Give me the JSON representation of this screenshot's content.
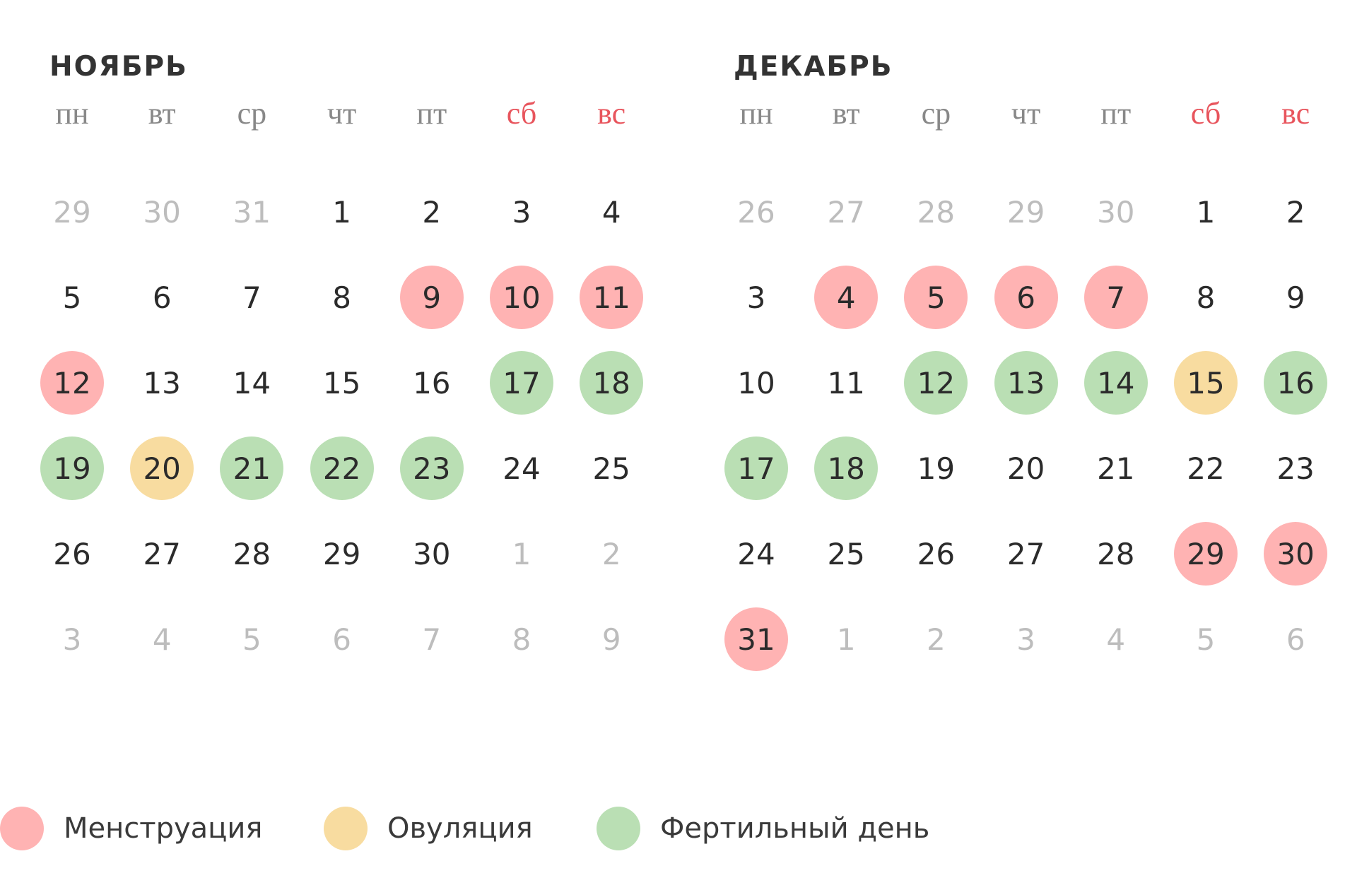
{
  "colors": {
    "menstruation": "#ffb3b3",
    "ovulation": "#f8dca0",
    "fertile": "#badfb4",
    "weekend_text": "#e8555d",
    "muted_text": "#bdbdbd"
  },
  "weekdays": [
    {
      "label": "пн",
      "weekend": false
    },
    {
      "label": "вт",
      "weekend": false
    },
    {
      "label": "ср",
      "weekend": false
    },
    {
      "label": "чт",
      "weekend": false
    },
    {
      "label": "пт",
      "weekend": false
    },
    {
      "label": "сб",
      "weekend": true
    },
    {
      "label": "вс",
      "weekend": true
    }
  ],
  "months": [
    {
      "title": "НОЯБРЬ",
      "weeks": [
        [
          {
            "d": "29",
            "t": "muted"
          },
          {
            "d": "30",
            "t": "muted"
          },
          {
            "d": "31",
            "t": "muted"
          },
          {
            "d": "1",
            "t": ""
          },
          {
            "d": "2",
            "t": ""
          },
          {
            "d": "3",
            "t": ""
          },
          {
            "d": "4",
            "t": ""
          }
        ],
        [
          {
            "d": "5",
            "t": ""
          },
          {
            "d": "6",
            "t": ""
          },
          {
            "d": "7",
            "t": ""
          },
          {
            "d": "8",
            "t": ""
          },
          {
            "d": "9",
            "t": "menstruation"
          },
          {
            "d": "10",
            "t": "menstruation"
          },
          {
            "d": "11",
            "t": "menstruation"
          }
        ],
        [
          {
            "d": "12",
            "t": "menstruation"
          },
          {
            "d": "13",
            "t": ""
          },
          {
            "d": "14",
            "t": ""
          },
          {
            "d": "15",
            "t": ""
          },
          {
            "d": "16",
            "t": ""
          },
          {
            "d": "17",
            "t": "fertile"
          },
          {
            "d": "18",
            "t": "fertile"
          }
        ],
        [
          {
            "d": "19",
            "t": "fertile"
          },
          {
            "d": "20",
            "t": "ovulation"
          },
          {
            "d": "21",
            "t": "fertile"
          },
          {
            "d": "22",
            "t": "fertile"
          },
          {
            "d": "23",
            "t": "fertile"
          },
          {
            "d": "24",
            "t": ""
          },
          {
            "d": "25",
            "t": ""
          }
        ],
        [
          {
            "d": "26",
            "t": ""
          },
          {
            "d": "27",
            "t": ""
          },
          {
            "d": "28",
            "t": ""
          },
          {
            "d": "29",
            "t": ""
          },
          {
            "d": "30",
            "t": ""
          },
          {
            "d": "1",
            "t": "muted"
          },
          {
            "d": "2",
            "t": "muted"
          }
        ],
        [
          {
            "d": "3",
            "t": "muted"
          },
          {
            "d": "4",
            "t": "muted"
          },
          {
            "d": "5",
            "t": "muted"
          },
          {
            "d": "6",
            "t": "muted"
          },
          {
            "d": "7",
            "t": "muted"
          },
          {
            "d": "8",
            "t": "muted"
          },
          {
            "d": "9",
            "t": "muted"
          }
        ]
      ]
    },
    {
      "title": "ДЕКАБРЬ",
      "weeks": [
        [
          {
            "d": "26",
            "t": "muted"
          },
          {
            "d": "27",
            "t": "muted"
          },
          {
            "d": "28",
            "t": "muted"
          },
          {
            "d": "29",
            "t": "muted"
          },
          {
            "d": "30",
            "t": "muted"
          },
          {
            "d": "1",
            "t": ""
          },
          {
            "d": "2",
            "t": ""
          }
        ],
        [
          {
            "d": "3",
            "t": ""
          },
          {
            "d": "4",
            "t": "menstruation"
          },
          {
            "d": "5",
            "t": "menstruation"
          },
          {
            "d": "6",
            "t": "menstruation"
          },
          {
            "d": "7",
            "t": "menstruation"
          },
          {
            "d": "8",
            "t": ""
          },
          {
            "d": "9",
            "t": ""
          }
        ],
        [
          {
            "d": "10",
            "t": ""
          },
          {
            "d": "11",
            "t": ""
          },
          {
            "d": "12",
            "t": "fertile"
          },
          {
            "d": "13",
            "t": "fertile"
          },
          {
            "d": "14",
            "t": "fertile"
          },
          {
            "d": "15",
            "t": "ovulation"
          },
          {
            "d": "16",
            "t": "fertile"
          }
        ],
        [
          {
            "d": "17",
            "t": "fertile"
          },
          {
            "d": "18",
            "t": "fertile"
          },
          {
            "d": "19",
            "t": ""
          },
          {
            "d": "20",
            "t": ""
          },
          {
            "d": "21",
            "t": ""
          },
          {
            "d": "22",
            "t": ""
          },
          {
            "d": "23",
            "t": ""
          }
        ],
        [
          {
            "d": "24",
            "t": ""
          },
          {
            "d": "25",
            "t": ""
          },
          {
            "d": "26",
            "t": ""
          },
          {
            "d": "27",
            "t": ""
          },
          {
            "d": "28",
            "t": ""
          },
          {
            "d": "29",
            "t": "menstruation"
          },
          {
            "d": "30",
            "t": "menstruation"
          }
        ],
        [
          {
            "d": "31",
            "t": "menstruation"
          },
          {
            "d": "1",
            "t": "muted"
          },
          {
            "d": "2",
            "t": "muted"
          },
          {
            "d": "3",
            "t": "muted"
          },
          {
            "d": "4",
            "t": "muted"
          },
          {
            "d": "5",
            "t": "muted"
          },
          {
            "d": "6",
            "t": "muted"
          }
        ]
      ]
    }
  ],
  "legend": [
    {
      "key": "menstruation",
      "label": "Менструация"
    },
    {
      "key": "ovulation",
      "label": "Овуляция"
    },
    {
      "key": "fertile",
      "label": "Фертильный день"
    }
  ]
}
